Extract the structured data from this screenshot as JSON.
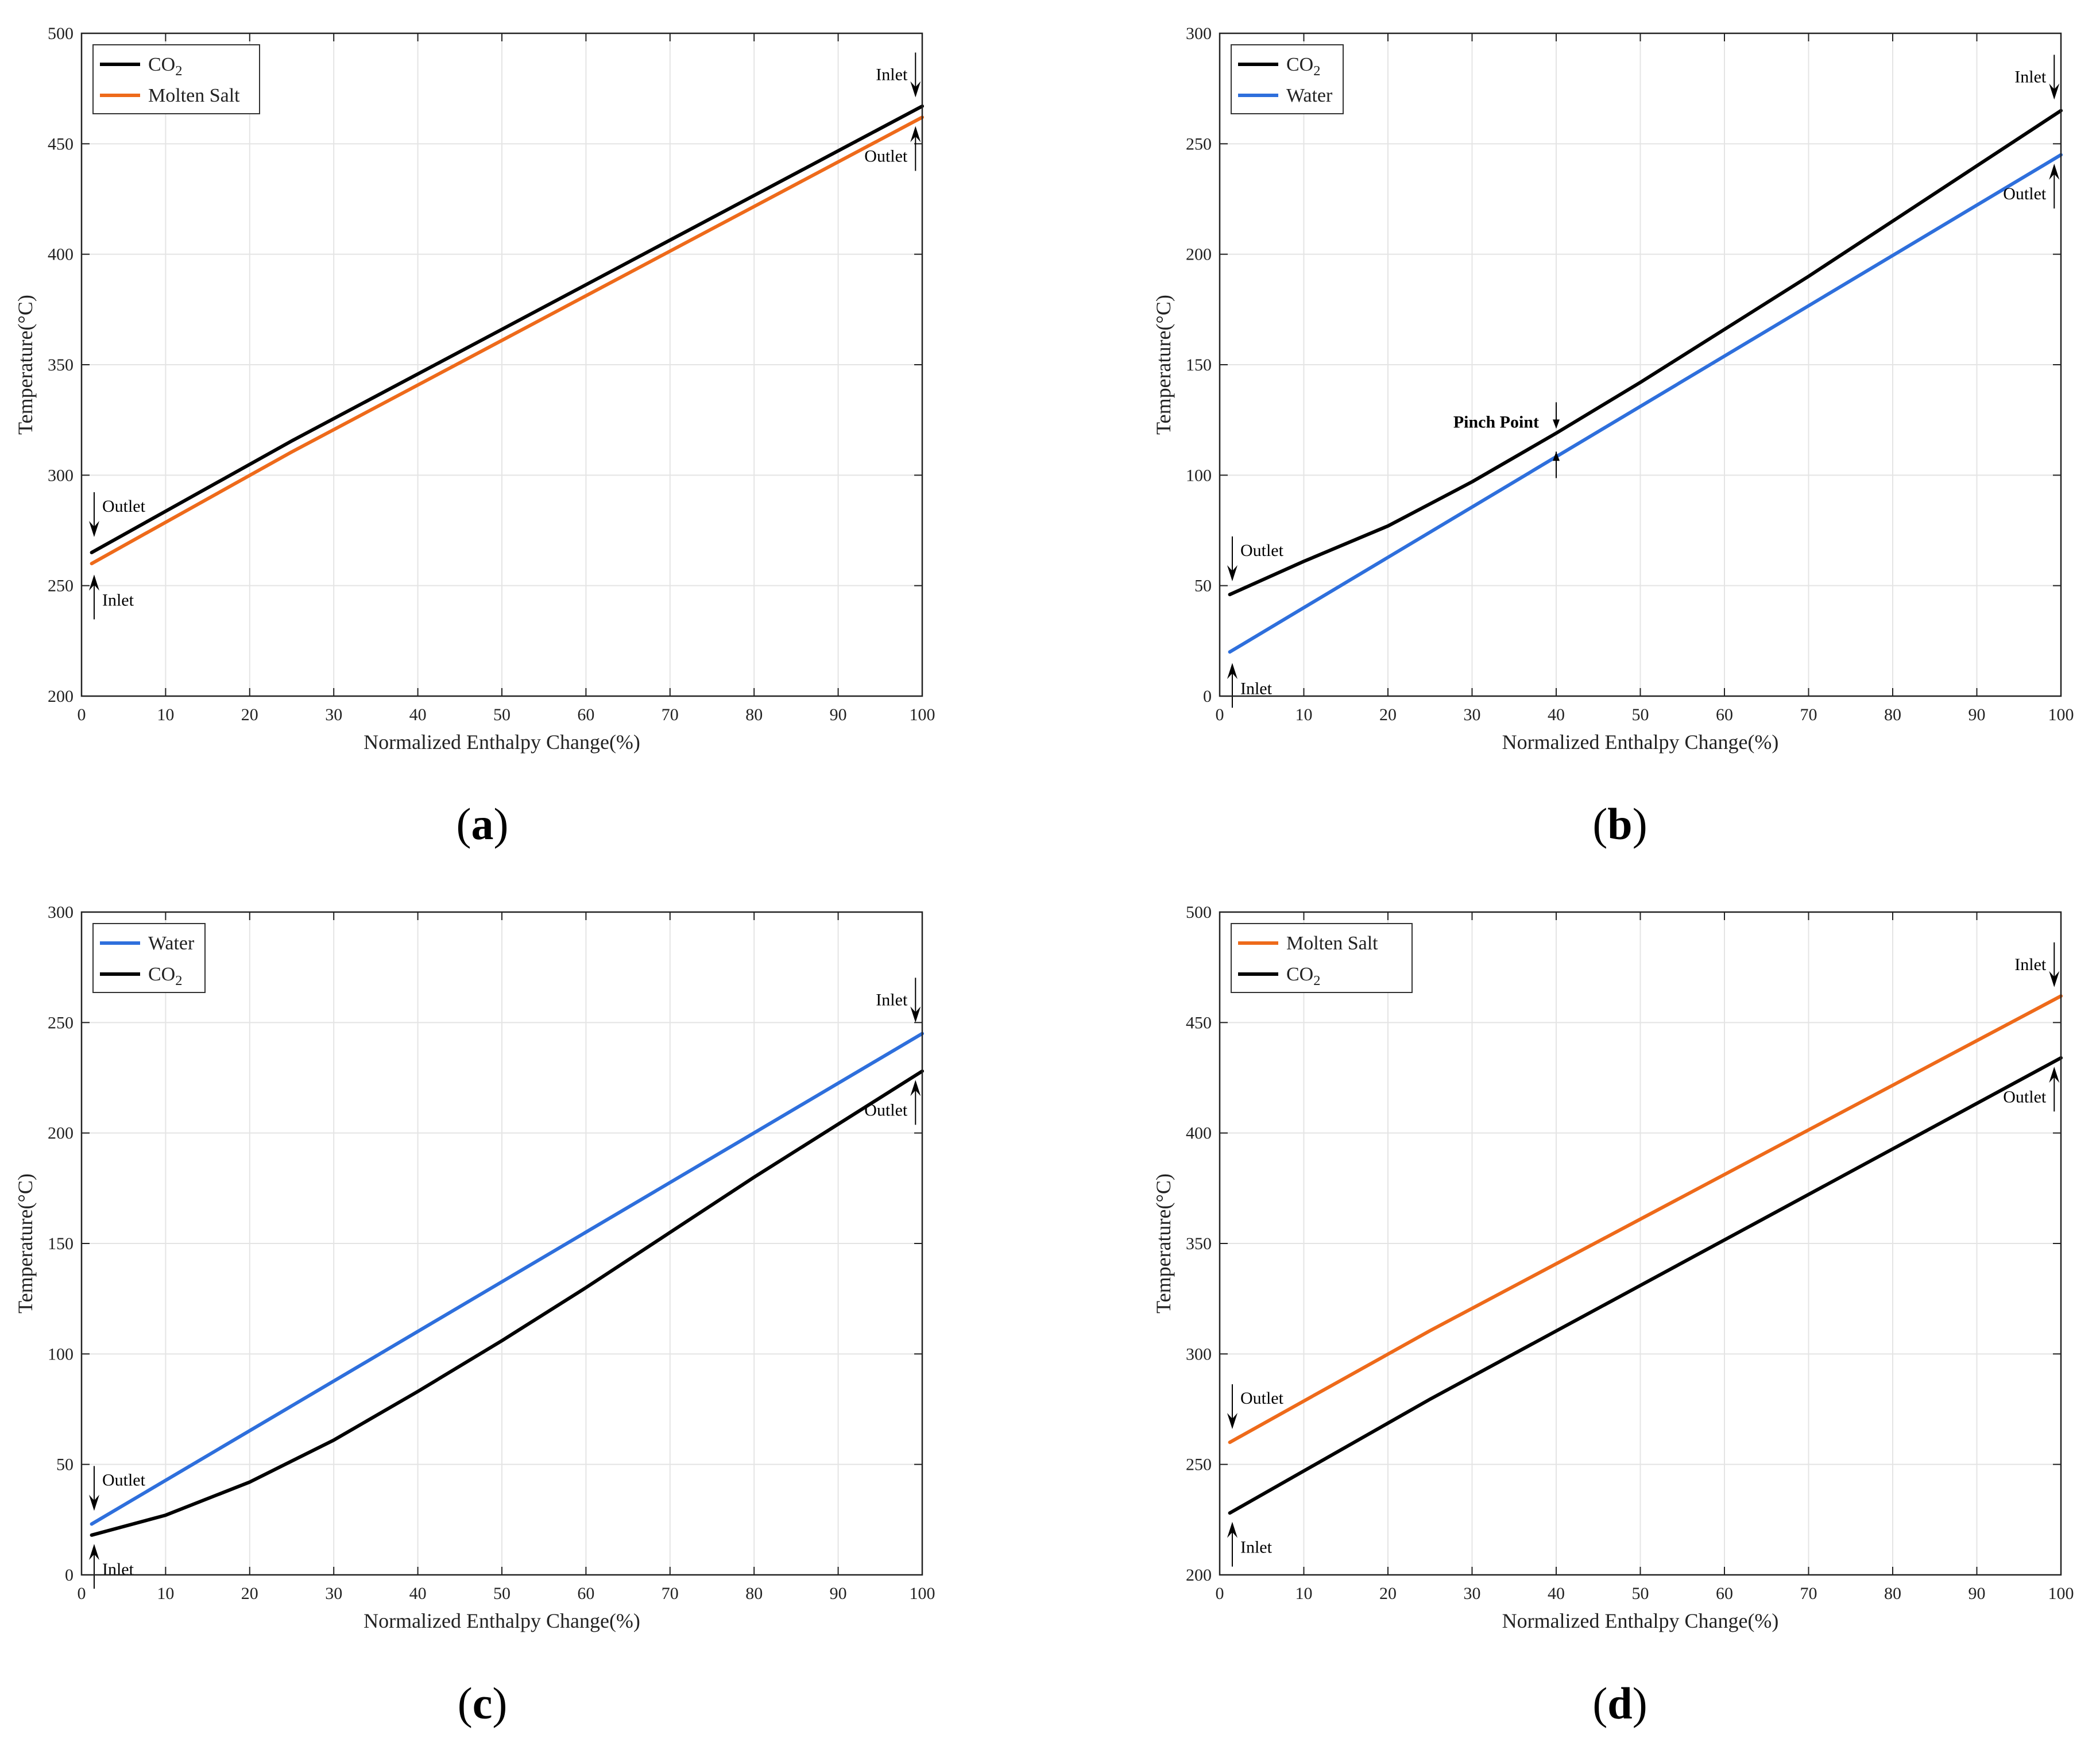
{
  "chart_data": [
    {
      "type": "line",
      "panel_label": "a",
      "xlabel": "Normalized Enthalpy Change(%)",
      "ylabel": "Temperature(°C)",
      "xlim": [
        0,
        100
      ],
      "ylim": [
        200,
        500
      ],
      "xticks": [
        0,
        10,
        20,
        30,
        40,
        50,
        60,
        70,
        80,
        90,
        100
      ],
      "yticks": [
        200,
        250,
        300,
        350,
        400,
        450,
        500
      ],
      "grid": true,
      "legend_position": "top-left",
      "series": [
        {
          "name": "CO₂",
          "color": "#000000",
          "x": [
            1.2,
            25,
            50,
            75,
            100
          ],
          "y": [
            265,
            315.5,
            366,
            416.5,
            467
          ]
        },
        {
          "name": "Molten Salt",
          "color": "#ee6a1a",
          "x": [
            1.2,
            25,
            50,
            75,
            100
          ],
          "y": [
            260,
            310.5,
            361,
            411.5,
            462
          ]
        }
      ],
      "annotations": [
        {
          "text": "Outlet",
          "x": 1.5,
          "y": 272,
          "dir": "down",
          "bold": false
        },
        {
          "text": "Inlet",
          "x": 1.5,
          "y": 255,
          "dir": "up",
          "bold": false
        },
        {
          "text": "Inlet",
          "x": 99.2,
          "y": 471,
          "dir": "down",
          "bold": false
        },
        {
          "text": "Outlet",
          "x": 99.2,
          "y": 458,
          "dir": "up",
          "bold": false
        }
      ]
    },
    {
      "type": "line",
      "panel_label": "b",
      "xlabel": "Normalized Enthalpy Change(%)",
      "ylabel": "Temperature(°C)",
      "xlim": [
        0,
        100
      ],
      "ylim": [
        0,
        300
      ],
      "xticks": [
        0,
        10,
        20,
        30,
        40,
        50,
        60,
        70,
        80,
        90,
        100
      ],
      "yticks": [
        0,
        50,
        100,
        150,
        200,
        250,
        300
      ],
      "grid": true,
      "legend_position": "top-left",
      "series": [
        {
          "name": "CO₂",
          "color": "#000000",
          "x": [
            1.2,
            10,
            20,
            30,
            40,
            50,
            60,
            70,
            80,
            90,
            100
          ],
          "y": [
            46,
            61,
            77,
            97,
            119,
            142,
            166,
            190,
            215,
            240,
            265
          ]
        },
        {
          "name": "Water",
          "color": "#2e6fdc",
          "x": [
            1.2,
            100
          ],
          "y": [
            20,
            245
          ]
        }
      ],
      "annotations": [
        {
          "text": "Outlet",
          "x": 1.5,
          "y": 52,
          "dir": "down",
          "bold": false
        },
        {
          "text": "Inlet",
          "x": 1.5,
          "y": 15,
          "dir": "up",
          "bold": false
        },
        {
          "text": "Inlet",
          "x": 99.2,
          "y": 270,
          "dir": "down",
          "bold": false
        },
        {
          "text": "Outlet",
          "x": 99.2,
          "y": 241,
          "dir": "up",
          "bold": false
        },
        {
          "text": "Pinch Point",
          "x": 40,
          "y": 120,
          "dir": "pinch",
          "bold": true
        }
      ]
    },
    {
      "type": "line",
      "panel_label": "c",
      "xlabel": "Normalized Enthalpy Change(%)",
      "ylabel": "Temperature(°C)",
      "xlim": [
        0,
        100
      ],
      "ylim": [
        0,
        300
      ],
      "xticks": [
        0,
        10,
        20,
        30,
        40,
        50,
        60,
        70,
        80,
        90,
        100
      ],
      "yticks": [
        0,
        50,
        100,
        150,
        200,
        250,
        300
      ],
      "grid": true,
      "legend_position": "top-left",
      "series": [
        {
          "name": "Water",
          "color": "#2e6fdc",
          "x": [
            1.2,
            100
          ],
          "y": [
            23,
            245
          ]
        },
        {
          "name": "CO₂",
          "color": "#000000",
          "x": [
            1.2,
            10,
            20,
            30,
            40,
            50,
            60,
            70,
            80,
            90,
            100
          ],
          "y": [
            18,
            27,
            42,
            61,
            83,
            106,
            130,
            155,
            180,
            204,
            228
          ]
        }
      ],
      "annotations": [
        {
          "text": "Outlet",
          "x": 1.5,
          "y": 29,
          "dir": "down",
          "bold": false
        },
        {
          "text": "Inlet",
          "x": 1.5,
          "y": 14,
          "dir": "up",
          "bold": false
        },
        {
          "text": "Inlet",
          "x": 99.2,
          "y": 250,
          "dir": "down",
          "bold": false
        },
        {
          "text": "Outlet",
          "x": 99.2,
          "y": 224,
          "dir": "up",
          "bold": false
        }
      ]
    },
    {
      "type": "line",
      "panel_label": "d",
      "xlabel": "Normalized Enthalpy Change(%)",
      "ylabel": "Temperature(°C)",
      "xlim": [
        0,
        100
      ],
      "ylim": [
        200,
        500
      ],
      "xticks": [
        0,
        10,
        20,
        30,
        40,
        50,
        60,
        70,
        80,
        90,
        100
      ],
      "yticks": [
        200,
        250,
        300,
        350,
        400,
        450,
        500
      ],
      "grid": true,
      "legend_position": "top-left",
      "series": [
        {
          "name": "Molten Salt",
          "color": "#ee6a1a",
          "x": [
            1.2,
            25,
            50,
            75,
            100
          ],
          "y": [
            260,
            310.5,
            361,
            411.5,
            462
          ]
        },
        {
          "name": "CO₂",
          "color": "#000000",
          "x": [
            1.2,
            25,
            50,
            75,
            100
          ],
          "y": [
            228,
            279.5,
            331,
            382.5,
            434
          ]
        }
      ],
      "annotations": [
        {
          "text": "Outlet",
          "x": 1.5,
          "y": 266,
          "dir": "down",
          "bold": false
        },
        {
          "text": "Inlet",
          "x": 1.5,
          "y": 224,
          "dir": "up",
          "bold": false
        },
        {
          "text": "Inlet",
          "x": 99.2,
          "y": 466,
          "dir": "down",
          "bold": false
        },
        {
          "text": "Outlet",
          "x": 99.2,
          "y": 430,
          "dir": "up",
          "bold": false
        }
      ]
    }
  ]
}
